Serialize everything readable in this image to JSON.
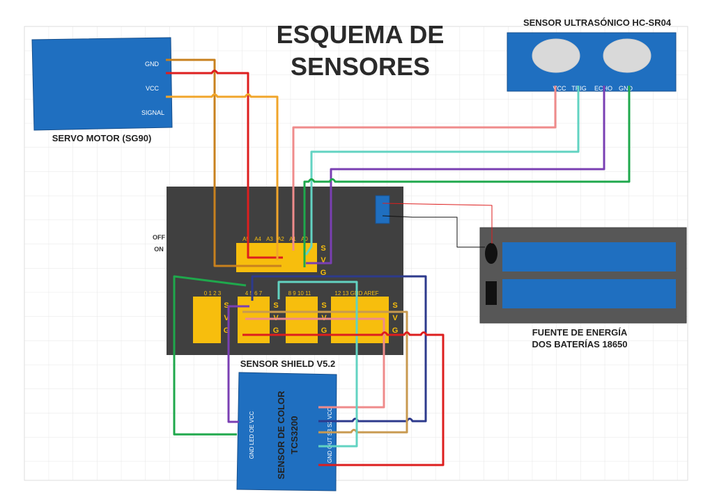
{
  "title": {
    "line1": "ESQUEMA DE",
    "line2": "SENSORES"
  },
  "servo": {
    "name": "SERVO MOTOR (SG90)",
    "pins": [
      "GND",
      "VCC",
      "SIGNAL"
    ]
  },
  "ultrasonic": {
    "name": "SENSOR ULTRASÓNICO HC-SR04",
    "pins": [
      "VCC",
      "TRIG",
      "ECHO",
      "GND"
    ]
  },
  "shield": {
    "name": "SENSOR SHIELD V5.2",
    "switch_off": "OFF",
    "switch_on": "ON",
    "analog_pins": [
      "A5",
      "A4",
      "A3",
      "A2",
      "A1",
      "A0"
    ],
    "svg": [
      "S",
      "V",
      "G"
    ],
    "digital_groups": [
      "0 1 2 3",
      "4 5 6 7",
      "8 9 10 11",
      "12 13 GND AREF"
    ]
  },
  "power": {
    "name_line1": "FUENTE DE ENERGÍA",
    "name_line2": "DOS BATERÍAS 18650"
  },
  "color_sensor": {
    "name_line1": "SENSOR DE COLOR",
    "name_line2": "TCS3200",
    "left_pins": "GND  LED  OE  VCC",
    "right_pins": "GND  OUT  S3  S2  VCC"
  },
  "colors": {
    "module_blue": "#1f6fc0",
    "shield_dark": "#404040",
    "header_yellow": "#f7be0d",
    "wire_brown": "#c8811e",
    "wire_red": "#dd1e1e",
    "wire_orange": "#f0a52a",
    "wire_salmon": "#ef8b8b",
    "wire_teal": "#62d3c2",
    "wire_purple": "#7a3fb3",
    "wire_green": "#1fa84c",
    "wire_navy": "#2d3a8c",
    "wire_tan": "#c89a50",
    "battery_gray": "#575757",
    "battery_cell": "#1f6fc0"
  }
}
